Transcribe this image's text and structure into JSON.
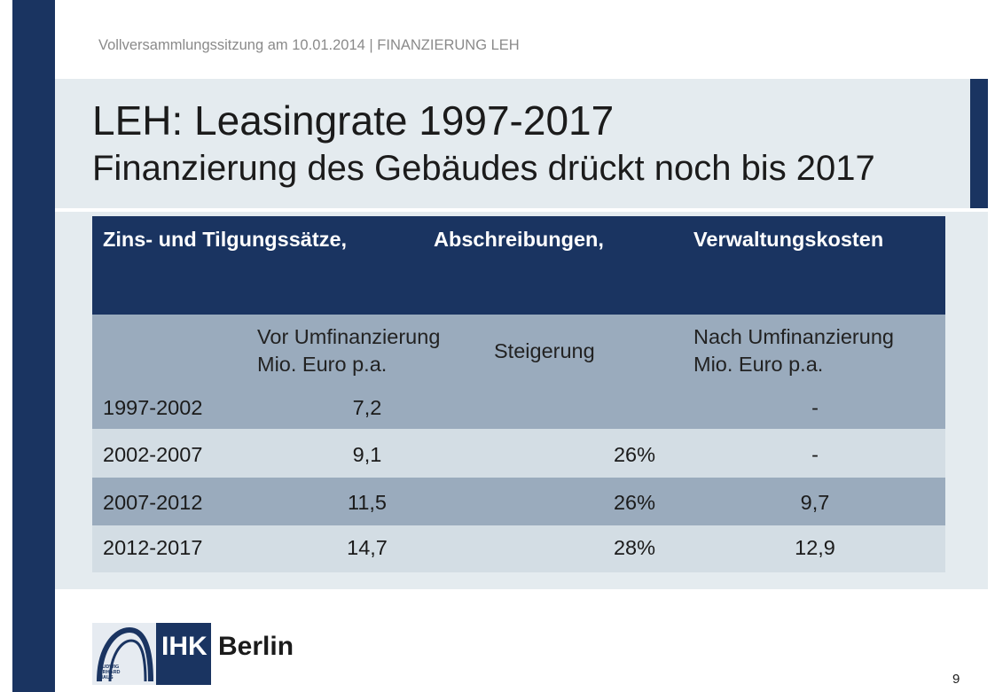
{
  "header": {
    "meeting_line": "Vollversammlungssitzung am  10.01.2014 | FINANZIERUNG LEH"
  },
  "title": {
    "line1": "LEH: Leasingrate 1997-2017",
    "line2": "Finanzierung des Gebäudes drückt noch bis 2017"
  },
  "table": {
    "header_labels": [
      "Zins- und Tilgungssätze,",
      "Abschreibungen,",
      "Verwaltungskosten"
    ],
    "subheaders": {
      "vor_line1": "Vor Umfinanzierung",
      "vor_line2": "Mio. Euro p.a.",
      "steigerung": "Steigerung",
      "nach_line1": "Nach Umfinanzierung",
      "nach_line2": "Mio. Euro p.a."
    },
    "rows": [
      {
        "period": "1997-2002",
        "vor": "7,2",
        "steigerung": "",
        "nach": "-"
      },
      {
        "period": "2002-2007",
        "vor": "9,1",
        "steigerung": "26%",
        "nach": "-"
      },
      {
        "period": "2007-2012",
        "vor": "11,5",
        "steigerung": "26%",
        "nach": "9,7"
      },
      {
        "period": "2012-2017",
        "vor": "14,7",
        "steigerung": "28%",
        "nach": "12,9"
      }
    ]
  },
  "logo": {
    "ihk": "IHK",
    "city": "Berlin",
    "mark_text_line1": "LUDWIG",
    "mark_text_line2": "ERHARD",
    "mark_text_line3": "HAUS"
  },
  "footer": {
    "page_number": "9"
  },
  "colors": {
    "navy": "#1a3461",
    "panel": "#e4ebef",
    "row_dark": "#9aabbd",
    "row_light": "#d3dde4"
  }
}
